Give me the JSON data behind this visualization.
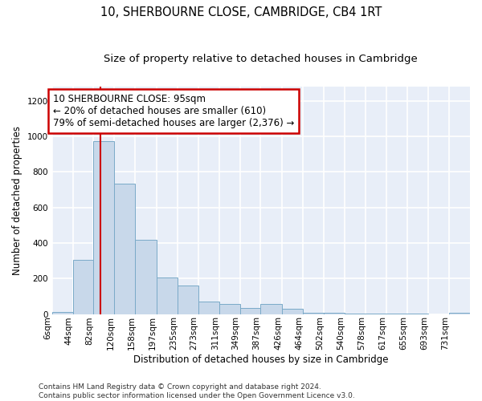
{
  "title": "10, SHERBOURNE CLOSE, CAMBRIDGE, CB4 1RT",
  "subtitle": "Size of property relative to detached houses in Cambridge",
  "xlabel": "Distribution of detached houses by size in Cambridge",
  "ylabel": "Number of detached properties",
  "bar_color": "#c8d8ea",
  "bar_edge_color": "#7aaac8",
  "background_color": "#e8eef8",
  "grid_color": "#ffffff",
  "annotation_box_color": "#cc0000",
  "vline_color": "#cc0000",
  "vline_x": 95,
  "annotation_text": "10 SHERBOURNE CLOSE: 95sqm\n← 20% of detached houses are smaller (610)\n79% of semi-detached houses are larger (2,376) →",
  "bin_edges": [
    6,
    44,
    82,
    120,
    158,
    197,
    235,
    273,
    311,
    349,
    387,
    426,
    464,
    502,
    540,
    578,
    617,
    655,
    693,
    731,
    769
  ],
  "bar_heights": [
    10,
    305,
    975,
    735,
    420,
    205,
    160,
    70,
    55,
    35,
    55,
    30,
    8,
    5,
    3,
    2,
    1,
    1,
    0,
    5
  ],
  "ylim": [
    0,
    1280
  ],
  "yticks": [
    0,
    200,
    400,
    600,
    800,
    1000,
    1200
  ],
  "footer": "Contains HM Land Registry data © Crown copyright and database right 2024.\nContains public sector information licensed under the Open Government Licence v3.0.",
  "title_fontsize": 10.5,
  "subtitle_fontsize": 9.5,
  "xlabel_fontsize": 8.5,
  "ylabel_fontsize": 8.5,
  "tick_fontsize": 7.5,
  "footer_fontsize": 6.5,
  "annotation_fontsize": 8.5
}
